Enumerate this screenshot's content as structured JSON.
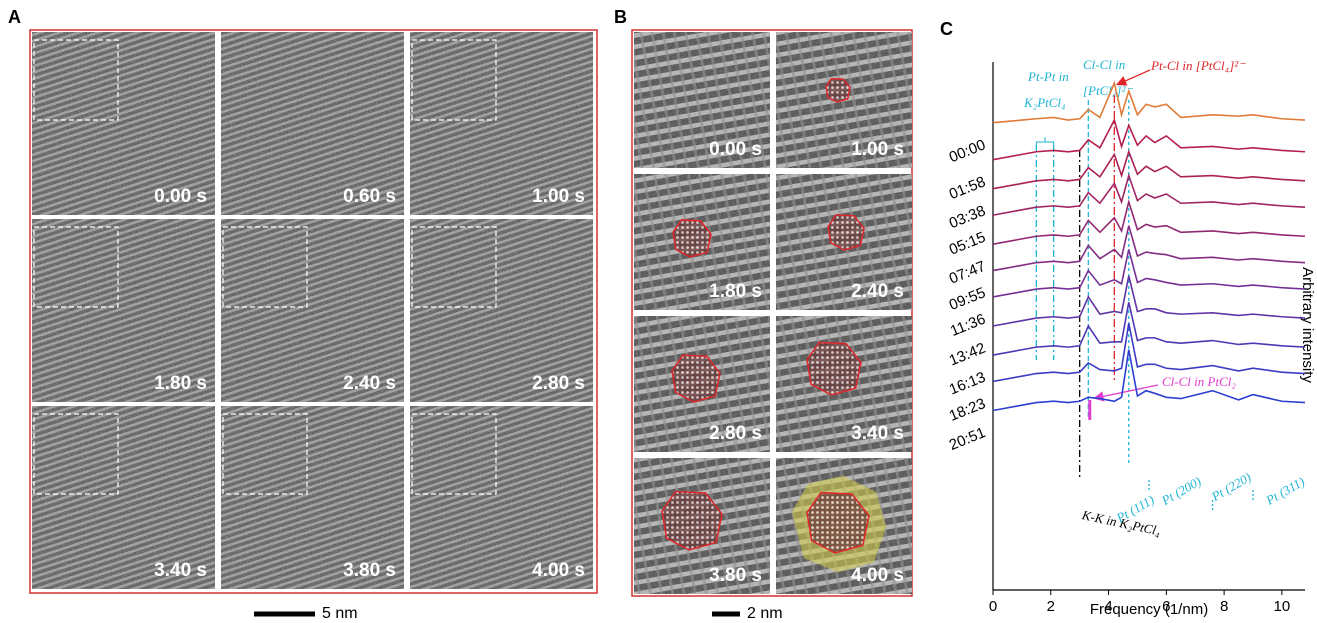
{
  "panel_a": {
    "label": "A",
    "frames": [
      "0.00 s",
      "0.60 s",
      "1.00 s",
      "1.80 s",
      "2.40 s",
      "2.80 s",
      "3.40 s",
      "3.80 s",
      "4.00 s"
    ],
    "scale_bar": "5 nm"
  },
  "panel_b": {
    "label": "B",
    "frames": [
      "0.00 s",
      "1.00 s",
      "1.80 s",
      "2.40 s",
      "2.80 s",
      "3.40 s",
      "3.80 s",
      "4.00 s"
    ],
    "scale_bar": "2 nm"
  },
  "chart_data": {
    "type": "line",
    "panel_label": "C",
    "x_label": "Frequency (1/nm)",
    "y_label": "Arbitrary intensity",
    "xlim": [
      0,
      10.8
    ],
    "xticks": [
      0,
      2,
      4,
      6,
      8,
      10
    ],
    "ylim": [
      0,
      20
    ],
    "x": [
      0,
      1,
      1.5,
      2.1,
      2.6,
      3.0,
      3.3,
      3.7,
      4.2,
      4.45,
      4.7,
      5.0,
      5.3,
      5.6,
      6.0,
      6.5,
      7.6,
      8.5,
      9.0,
      10,
      10.8
    ],
    "series": [
      {
        "name": "00:00",
        "color": "#e07b39",
        "values": [
          17.7,
          17.8,
          17.85,
          17.9,
          17.8,
          17.85,
          18.2,
          17.9,
          19.2,
          18.0,
          18.9,
          18.0,
          18.4,
          18.3,
          18.4,
          17.9,
          18.0,
          17.95,
          18.0,
          17.85,
          17.8
        ]
      },
      {
        "name": "01:58",
        "color": "#b41f4b",
        "values": [
          16.3,
          16.5,
          16.6,
          16.65,
          16.6,
          16.65,
          17.05,
          16.75,
          17.8,
          16.8,
          17.6,
          16.85,
          17.2,
          16.95,
          17.2,
          16.75,
          16.8,
          16.7,
          16.75,
          16.65,
          16.6
        ]
      },
      {
        "name": "03:38",
        "color": "#aa2155",
        "values": [
          15.2,
          15.4,
          15.5,
          15.55,
          15.5,
          15.55,
          16.0,
          15.65,
          16.5,
          15.7,
          16.6,
          15.75,
          16.05,
          15.85,
          16.05,
          15.65,
          15.7,
          15.6,
          15.65,
          15.55,
          15.5
        ]
      },
      {
        "name": "05:15",
        "color": "#9e2462",
        "values": [
          14.2,
          14.4,
          14.5,
          14.55,
          14.5,
          14.55,
          15.05,
          14.65,
          15.4,
          14.7,
          15.7,
          14.75,
          15.0,
          14.85,
          15.0,
          14.65,
          14.7,
          14.6,
          14.65,
          14.55,
          14.5
        ]
      },
      {
        "name": "07:47",
        "color": "#922873",
        "values": [
          13.1,
          13.3,
          13.4,
          13.45,
          13.4,
          13.45,
          14.0,
          13.55,
          14.1,
          13.6,
          14.7,
          13.65,
          13.85,
          13.75,
          13.8,
          13.55,
          13.6,
          13.5,
          13.55,
          13.45,
          13.4
        ]
      },
      {
        "name": "09:55",
        "color": "#842c85",
        "values": [
          12.1,
          12.3,
          12.4,
          12.45,
          12.4,
          12.45,
          13.05,
          12.55,
          12.9,
          12.6,
          13.8,
          12.65,
          12.8,
          12.75,
          12.7,
          12.55,
          12.6,
          12.5,
          12.55,
          12.45,
          12.4
        ]
      },
      {
        "name": "11:36",
        "color": "#743096",
        "values": [
          11.1,
          11.3,
          11.4,
          11.45,
          11.4,
          11.45,
          12.1,
          11.55,
          11.75,
          11.6,
          12.9,
          11.65,
          11.8,
          11.75,
          11.65,
          11.55,
          11.6,
          11.5,
          11.55,
          11.45,
          11.4
        ]
      },
      {
        "name": "13:42",
        "color": "#6034a6",
        "values": [
          10.0,
          10.2,
          10.3,
          10.35,
          10.3,
          10.35,
          11.1,
          10.45,
          10.55,
          10.5,
          11.9,
          10.55,
          10.65,
          10.65,
          10.5,
          10.45,
          10.5,
          10.4,
          10.45,
          10.35,
          10.3
        ]
      },
      {
        "name": "16:13",
        "color": "#4c38b6",
        "values": [
          8.9,
          9.1,
          9.2,
          9.25,
          9.2,
          9.25,
          10.0,
          9.35,
          9.4,
          9.4,
          10.9,
          9.45,
          9.55,
          9.55,
          9.4,
          9.35,
          9.45,
          9.3,
          9.35,
          9.25,
          9.2
        ]
      },
      {
        "name": "18:23",
        "color": "#3a3cc4",
        "values": [
          7.9,
          8.1,
          8.2,
          8.25,
          8.2,
          8.25,
          8.6,
          8.35,
          8.3,
          8.4,
          10.1,
          8.45,
          8.55,
          8.55,
          8.4,
          8.35,
          8.5,
          8.3,
          8.4,
          8.25,
          8.2
        ]
      },
      {
        "name": "20:51",
        "color": "#2b40d2",
        "values": [
          6.8,
          7.0,
          7.1,
          7.15,
          7.1,
          7.15,
          7.3,
          7.25,
          7.15,
          7.3,
          9.1,
          7.35,
          7.55,
          7.45,
          7.3,
          7.25,
          7.55,
          7.2,
          7.4,
          7.15,
          7.1
        ]
      }
    ],
    "annotations": [
      {
        "lines": [
          "Pt-Pt in",
          "K₂PtCl₄"
        ],
        "x": 1.5,
        "color": "#1fb5d6"
      },
      {
        "lines": [
          "Pt-Pt in",
          "K₂PtCl₄"
        ],
        "x": 2.1,
        "color": "#1fb5d6"
      },
      {
        "lines": [
          "K-K in K₂PtCl₄"
        ],
        "x": 3.0,
        "color": "#000000"
      },
      {
        "lines": [
          "Cl-Cl in",
          "[PtCl₄]²⁻"
        ],
        "x": 3.3,
        "color": "#1fb5d6"
      },
      {
        "lines": [
          "Pt-Cl in [PtCl₄]²⁻"
        ],
        "x": 4.2,
        "color": "#e0262a"
      },
      {
        "lines": [
          "Cl-Cl in PtCl₂"
        ],
        "x": 3.35,
        "color": "#e03ccf"
      },
      {
        "lines": [
          "Pt (111)"
        ],
        "x": 4.7,
        "color": "#1fb5d6"
      },
      {
        "lines": [
          "Pt (200)"
        ],
        "x": 5.4,
        "color": "#1fb5d6"
      },
      {
        "lines": [
          "Pt (220)"
        ],
        "x": 7.6,
        "color": "#1fb5d6"
      },
      {
        "lines": [
          "Pt (311)"
        ],
        "x": 9.0,
        "color": "#1fb5d6"
      }
    ]
  }
}
